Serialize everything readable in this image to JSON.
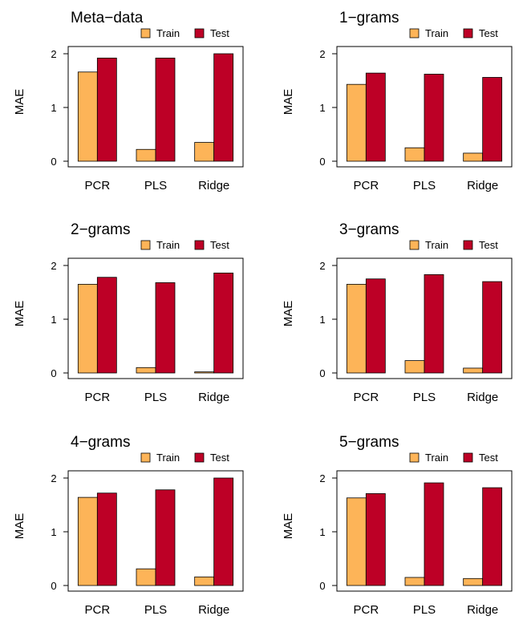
{
  "colors": {
    "train": "#fdb458",
    "test": "#bd0026",
    "axis": "#000000",
    "background": "#ffffff"
  },
  "chart_data": [
    {
      "type": "bar",
      "title": "Meta−data",
      "xlabel": "",
      "ylabel": "MAE",
      "categories": [
        "PCR",
        "PLS",
        "Ridge"
      ],
      "yticks": [
        "0",
        "1",
        "2"
      ],
      "ylim": [
        0,
        2.2
      ],
      "legend": "top-right",
      "series": [
        {
          "name": "Train",
          "values": [
            1.66,
            0.22,
            0.35
          ]
        },
        {
          "name": "Test",
          "values": [
            1.92,
            1.92,
            2.0
          ]
        }
      ]
    },
    {
      "type": "bar",
      "title": "1−grams",
      "xlabel": "",
      "ylabel": "MAE",
      "categories": [
        "PCR",
        "PLS",
        "Ridge"
      ],
      "yticks": [
        "0",
        "1",
        "2"
      ],
      "ylim": [
        0,
        2.2
      ],
      "legend": "top-right",
      "series": [
        {
          "name": "Train",
          "values": [
            1.43,
            0.25,
            0.15
          ]
        },
        {
          "name": "Test",
          "values": [
            1.64,
            1.62,
            1.56
          ]
        }
      ]
    },
    {
      "type": "bar",
      "title": "2−grams",
      "xlabel": "",
      "ylabel": "MAE",
      "categories": [
        "PCR",
        "PLS",
        "Ridge"
      ],
      "yticks": [
        "0",
        "1",
        "2"
      ],
      "ylim": [
        0,
        2.2
      ],
      "legend": "top-right",
      "series": [
        {
          "name": "Train",
          "values": [
            1.65,
            0.1,
            0.02
          ]
        },
        {
          "name": "Test",
          "values": [
            1.78,
            1.68,
            1.86
          ]
        }
      ]
    },
    {
      "type": "bar",
      "title": "3−grams",
      "xlabel": "",
      "ylabel": "MAE",
      "categories": [
        "PCR",
        "PLS",
        "Ridge"
      ],
      "yticks": [
        "0",
        "1",
        "2"
      ],
      "ylim": [
        0,
        2.2
      ],
      "legend": "top-right",
      "series": [
        {
          "name": "Train",
          "values": [
            1.65,
            0.23,
            0.09
          ]
        },
        {
          "name": "Test",
          "values": [
            1.75,
            1.83,
            1.7
          ]
        }
      ]
    },
    {
      "type": "bar",
      "title": "4−grams",
      "xlabel": "",
      "ylabel": "MAE",
      "categories": [
        "PCR",
        "PLS",
        "Ridge"
      ],
      "yticks": [
        "0",
        "1",
        "2"
      ],
      "ylim": [
        0,
        2.2
      ],
      "legend": "top-right",
      "series": [
        {
          "name": "Train",
          "values": [
            1.64,
            0.31,
            0.16
          ]
        },
        {
          "name": "Test",
          "values": [
            1.72,
            1.78,
            2.0
          ]
        }
      ]
    },
    {
      "type": "bar",
      "title": "5−grams",
      "xlabel": "",
      "ylabel": "MAE",
      "categories": [
        "PCR",
        "PLS",
        "Ridge"
      ],
      "yticks": [
        "0",
        "1",
        "2"
      ],
      "ylim": [
        0,
        2.2
      ],
      "legend": "top-right",
      "series": [
        {
          "name": "Train",
          "values": [
            1.63,
            0.15,
            0.13
          ]
        },
        {
          "name": "Test",
          "values": [
            1.71,
            1.91,
            1.82
          ]
        }
      ]
    }
  ]
}
